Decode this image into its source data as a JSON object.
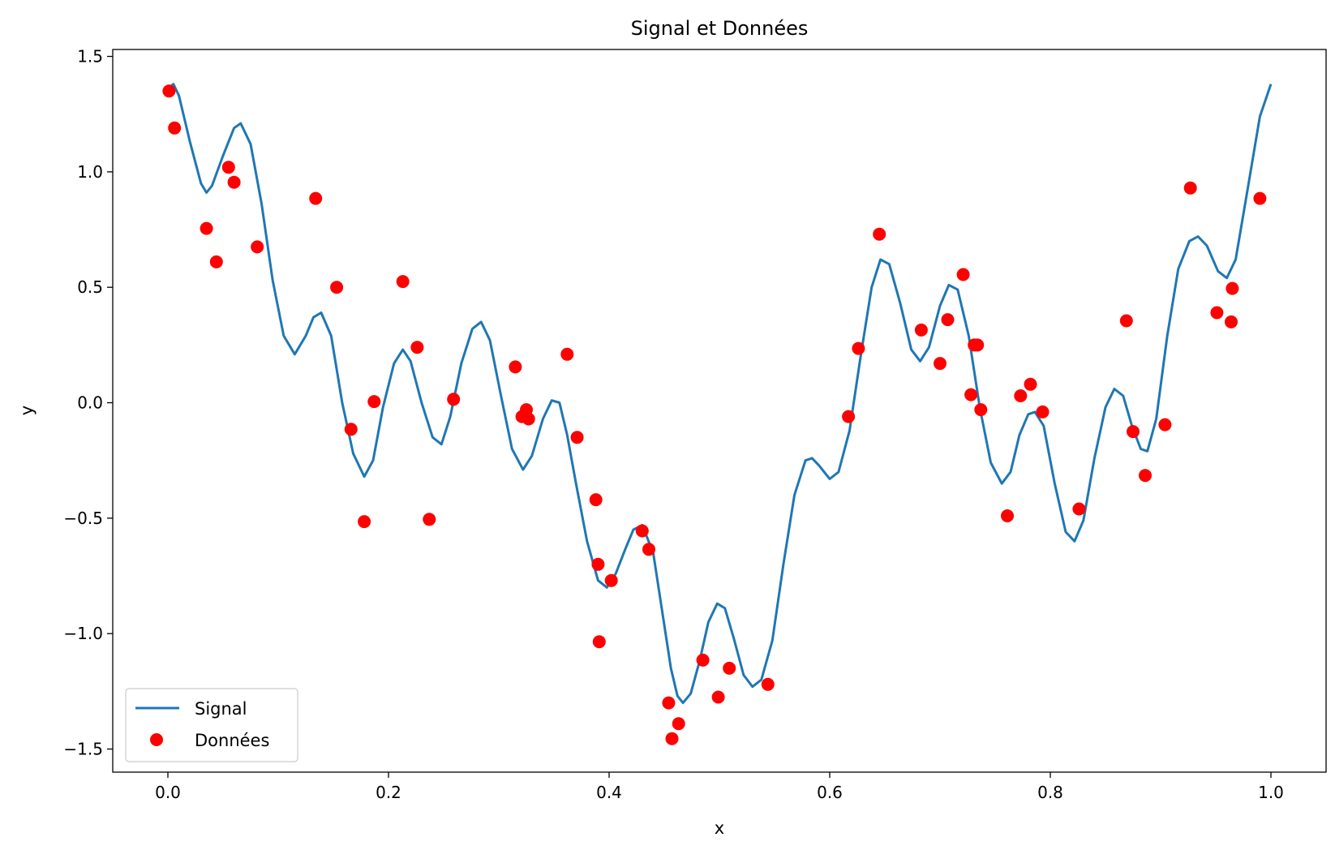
{
  "chart_data": {
    "type": "line+scatter",
    "title": "Signal et Données",
    "xlabel": "x",
    "ylabel": "y",
    "xlim": [
      -0.05,
      1.05
    ],
    "ylim": [
      -1.6,
      1.53
    ],
    "xticks": [
      0.0,
      0.2,
      0.4,
      0.6,
      0.8,
      1.0
    ],
    "xtick_labels": [
      "0.0",
      "0.2",
      "0.4",
      "0.6",
      "0.8",
      "1.0"
    ],
    "yticks": [
      -1.5,
      -1.0,
      -0.5,
      0.0,
      0.5,
      1.0,
      1.5
    ],
    "ytick_labels": [
      "−1.5",
      "−1.0",
      "−0.5",
      "0.0",
      "0.5",
      "1.0",
      "1.5"
    ],
    "grid": false,
    "legend": {
      "position": "lower-left",
      "entries": [
        "Signal",
        "Données"
      ]
    },
    "series": [
      {
        "name": "Signal",
        "kind": "line",
        "color": "#1f77b4",
        "points": [
          [
            0.0,
            1.36
          ],
          [
            0.005,
            1.38
          ],
          [
            0.01,
            1.33
          ],
          [
            0.02,
            1.13
          ],
          [
            0.03,
            0.95
          ],
          [
            0.035,
            0.91
          ],
          [
            0.04,
            0.94
          ],
          [
            0.05,
            1.07
          ],
          [
            0.06,
            1.19
          ],
          [
            0.066,
            1.21
          ],
          [
            0.075,
            1.12
          ],
          [
            0.085,
            0.86
          ],
          [
            0.095,
            0.53
          ],
          [
            0.105,
            0.29
          ],
          [
            0.115,
            0.21
          ],
          [
            0.125,
            0.29
          ],
          [
            0.132,
            0.37
          ],
          [
            0.139,
            0.39
          ],
          [
            0.148,
            0.29
          ],
          [
            0.158,
            0.0
          ],
          [
            0.168,
            -0.22
          ],
          [
            0.178,
            -0.32
          ],
          [
            0.186,
            -0.25
          ],
          [
            0.195,
            -0.02
          ],
          [
            0.205,
            0.17
          ],
          [
            0.213,
            0.23
          ],
          [
            0.22,
            0.18
          ],
          [
            0.23,
            0.0
          ],
          [
            0.24,
            -0.15
          ],
          [
            0.248,
            -0.18
          ],
          [
            0.256,
            -0.06
          ],
          [
            0.266,
            0.17
          ],
          [
            0.276,
            0.32
          ],
          [
            0.284,
            0.35
          ],
          [
            0.292,
            0.27
          ],
          [
            0.302,
            0.03
          ],
          [
            0.312,
            -0.2
          ],
          [
            0.322,
            -0.29
          ],
          [
            0.33,
            -0.23
          ],
          [
            0.34,
            -0.07
          ],
          [
            0.348,
            0.01
          ],
          [
            0.355,
            0.0
          ],
          [
            0.362,
            -0.14
          ],
          [
            0.37,
            -0.35
          ],
          [
            0.38,
            -0.6
          ],
          [
            0.39,
            -0.77
          ],
          [
            0.398,
            -0.8
          ],
          [
            0.406,
            -0.74
          ],
          [
            0.415,
            -0.63
          ],
          [
            0.422,
            -0.55
          ],
          [
            0.43,
            -0.53
          ],
          [
            0.44,
            -0.65
          ],
          [
            0.448,
            -0.9
          ],
          [
            0.456,
            -1.15
          ],
          [
            0.462,
            -1.27
          ],
          [
            0.467,
            -1.3
          ],
          [
            0.474,
            -1.26
          ],
          [
            0.482,
            -1.12
          ],
          [
            0.49,
            -0.95
          ],
          [
            0.498,
            -0.87
          ],
          [
            0.505,
            -0.89
          ],
          [
            0.513,
            -1.02
          ],
          [
            0.522,
            -1.18
          ],
          [
            0.53,
            -1.23
          ],
          [
            0.538,
            -1.2
          ],
          [
            0.548,
            -1.03
          ],
          [
            0.558,
            -0.7
          ],
          [
            0.568,
            -0.4
          ],
          [
            0.578,
            -0.25
          ],
          [
            0.584,
            -0.24
          ],
          [
            0.59,
            -0.27
          ],
          [
            0.6,
            -0.33
          ],
          [
            0.608,
            -0.3
          ],
          [
            0.618,
            -0.12
          ],
          [
            0.628,
            0.2
          ],
          [
            0.638,
            0.5
          ],
          [
            0.646,
            0.62
          ],
          [
            0.654,
            0.6
          ],
          [
            0.664,
            0.43
          ],
          [
            0.674,
            0.23
          ],
          [
            0.682,
            0.18
          ],
          [
            0.69,
            0.24
          ],
          [
            0.7,
            0.42
          ],
          [
            0.708,
            0.51
          ],
          [
            0.716,
            0.49
          ],
          [
            0.726,
            0.29
          ],
          [
            0.736,
            -0.02
          ],
          [
            0.746,
            -0.26
          ],
          [
            0.756,
            -0.35
          ],
          [
            0.764,
            -0.3
          ],
          [
            0.772,
            -0.14
          ],
          [
            0.78,
            -0.05
          ],
          [
            0.786,
            -0.04
          ],
          [
            0.794,
            -0.1
          ],
          [
            0.804,
            -0.35
          ],
          [
            0.814,
            -0.56
          ],
          [
            0.822,
            -0.6
          ],
          [
            0.83,
            -0.51
          ],
          [
            0.84,
            -0.24
          ],
          [
            0.85,
            -0.02
          ],
          [
            0.858,
            0.06
          ],
          [
            0.866,
            0.03
          ],
          [
            0.874,
            -0.1
          ],
          [
            0.882,
            -0.2
          ],
          [
            0.888,
            -0.21
          ],
          [
            0.896,
            -0.07
          ],
          [
            0.906,
            0.29
          ],
          [
            0.916,
            0.58
          ],
          [
            0.926,
            0.7
          ],
          [
            0.934,
            0.72
          ],
          [
            0.942,
            0.68
          ],
          [
            0.952,
            0.57
          ],
          [
            0.96,
            0.54
          ],
          [
            0.968,
            0.62
          ],
          [
            0.978,
            0.9
          ],
          [
            0.99,
            1.24
          ],
          [
            1.0,
            1.38
          ]
        ]
      },
      {
        "name": "Données",
        "kind": "scatter",
        "color": "#ff0000",
        "points": [
          [
            0.001,
            1.35
          ],
          [
            0.006,
            1.19
          ],
          [
            0.035,
            0.755
          ],
          [
            0.044,
            0.61
          ],
          [
            0.055,
            1.02
          ],
          [
            0.06,
            0.955
          ],
          [
            0.081,
            0.675
          ],
          [
            0.134,
            0.885
          ],
          [
            0.153,
            0.5
          ],
          [
            0.166,
            -0.115
          ],
          [
            0.178,
            -0.515
          ],
          [
            0.187,
            0.005
          ],
          [
            0.213,
            0.525
          ],
          [
            0.226,
            0.24
          ],
          [
            0.237,
            -0.505
          ],
          [
            0.259,
            0.015
          ],
          [
            0.315,
            0.155
          ],
          [
            0.321,
            -0.06
          ],
          [
            0.325,
            -0.03
          ],
          [
            0.327,
            -0.07
          ],
          [
            0.362,
            0.21
          ],
          [
            0.371,
            -0.15
          ],
          [
            0.388,
            -0.42
          ],
          [
            0.39,
            -0.7
          ],
          [
            0.391,
            -1.035
          ],
          [
            0.402,
            -0.77
          ],
          [
            0.43,
            -0.555
          ],
          [
            0.436,
            -0.635
          ],
          [
            0.454,
            -1.3
          ],
          [
            0.457,
            -1.455
          ],
          [
            0.463,
            -1.39
          ],
          [
            0.485,
            -1.115
          ],
          [
            0.499,
            -1.275
          ],
          [
            0.509,
            -1.15
          ],
          [
            0.544,
            -1.22
          ],
          [
            0.617,
            -0.06
          ],
          [
            0.626,
            0.235
          ],
          [
            0.645,
            0.73
          ],
          [
            0.683,
            0.315
          ],
          [
            0.7,
            0.17
          ],
          [
            0.707,
            0.36
          ],
          [
            0.721,
            0.555
          ],
          [
            0.728,
            0.035
          ],
          [
            0.731,
            0.25
          ],
          [
            0.734,
            0.25
          ],
          [
            0.737,
            -0.03
          ],
          [
            0.761,
            -0.49
          ],
          [
            0.773,
            0.03
          ],
          [
            0.782,
            0.08
          ],
          [
            0.793,
            -0.04
          ],
          [
            0.826,
            -0.46
          ],
          [
            0.869,
            0.355
          ],
          [
            0.875,
            -0.125
          ],
          [
            0.886,
            -0.315
          ],
          [
            0.904,
            -0.095
          ],
          [
            0.927,
            0.93
          ],
          [
            0.951,
            0.39
          ],
          [
            0.964,
            0.35
          ],
          [
            0.965,
            0.495
          ],
          [
            0.99,
            0.885
          ]
        ]
      }
    ]
  }
}
